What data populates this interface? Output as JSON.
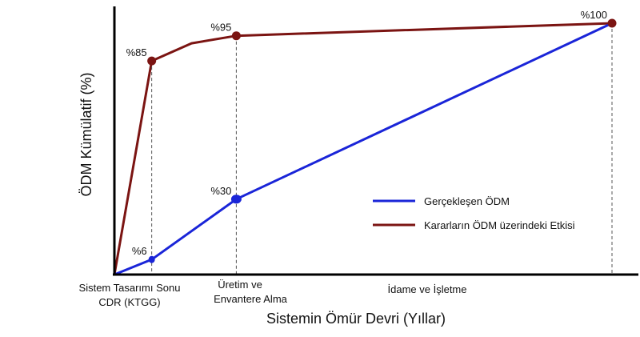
{
  "chart_data": {
    "type": "line",
    "xlabel": "Sistemin Ömür Devri (Yıllar)",
    "ylabel": "ÖDM Kümülatif  (%)",
    "phases": [
      [
        "Sistem Tasarımı Sonu",
        "CDR (KTGG)"
      ],
      [
        "Üretim ve",
        "Envantere Alma"
      ],
      [
        "İdame ve İşletme"
      ]
    ],
    "series": [
      {
        "name": "Kararların ÖDM üzerindeki Etkisi",
        "color": "#7b1412",
        "points": [
          [
            0,
            0
          ],
          [
            7.5,
            85
          ],
          [
            15.5,
            92
          ],
          [
            24.5,
            95
          ],
          [
            100,
            100
          ]
        ],
        "markers": [
          {
            "index": 1,
            "label": "%85"
          },
          {
            "index": 3,
            "label": "%95"
          },
          {
            "index": 4,
            "label": "%100"
          }
        ]
      },
      {
        "name": "Gerçekleşen ÖDM",
        "color": "#1a25d8",
        "points": [
          [
            0,
            0
          ],
          [
            7.5,
            6
          ],
          [
            24.5,
            30
          ],
          [
            100,
            100
          ]
        ],
        "markers": [
          {
            "index": 1,
            "label": "%6"
          },
          {
            "index": 2,
            "label": "%30"
          }
        ]
      }
    ],
    "legend": [
      {
        "name": "Gerçekleşen ÖDM",
        "color": "#1a25d8"
      },
      {
        "name": "Kararların ÖDM üzerindeki  Etkisi",
        "color": "#7b1412"
      }
    ],
    "ylim": [
      0,
      100
    ],
    "grid": false,
    "legend_position": "right"
  }
}
